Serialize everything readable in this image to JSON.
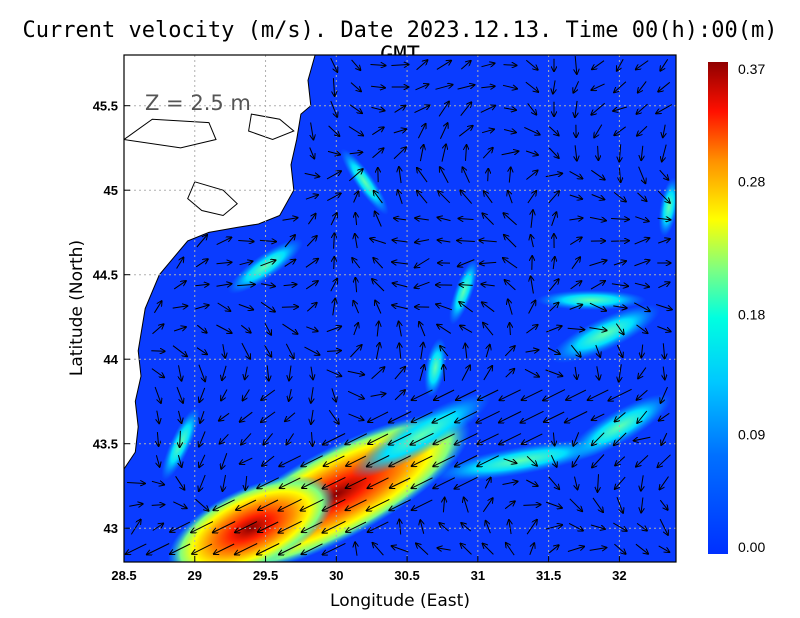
{
  "title": "Current velocity (m/s). Date 2023.12.13. Time 00(h):00(m) GMT",
  "depth_label": "Z = 2.5 m",
  "chart_data": {
    "type": "vector-field-map",
    "title": "Current velocity (m/s). Date 2023.12.13. Time 00(h):00(m) GMT",
    "xlabel": "Longitude (East)",
    "ylabel": "Latitude (North)",
    "xlim": [
      28.5,
      32.4
    ],
    "ylim": [
      42.8,
      45.8
    ],
    "x_ticks": [
      "28.5",
      "29",
      "29.5",
      "30",
      "30.5",
      "31",
      "31.5",
      "32"
    ],
    "y_ticks": [
      "43",
      "43.5",
      "44",
      "44.5",
      "45",
      "45.5"
    ],
    "x_tick_values": [
      28.5,
      29,
      29.5,
      30,
      30.5,
      31,
      31.5,
      32
    ],
    "y_tick_values": [
      43,
      43.5,
      44,
      44.5,
      45,
      45.5
    ],
    "grid": true,
    "colorbar": {
      "labels": [
        "0.37",
        "0.28",
        "0.18",
        "0.09",
        "0.00"
      ],
      "values": [
        0.37,
        0.28,
        0.18,
        0.09,
        0.0
      ],
      "min": 0.0,
      "max": 0.37,
      "colors": [
        "#0030ff",
        "#00a0ff",
        "#00ffff",
        "#80ff80",
        "#ffff00",
        "#ff8000",
        "#ff0000",
        "#800000"
      ]
    },
    "coastline": [
      [
        28.5,
        43.35
      ],
      [
        28.58,
        43.45
      ],
      [
        28.6,
        43.6
      ],
      [
        28.58,
        43.75
      ],
      [
        28.62,
        43.9
      ],
      [
        28.6,
        44.05
      ],
      [
        28.65,
        44.3
      ],
      [
        28.75,
        44.5
      ],
      [
        28.85,
        44.6
      ],
      [
        28.95,
        44.7
      ],
      [
        29.1,
        44.75
      ],
      [
        29.3,
        44.78
      ],
      [
        29.45,
        44.8
      ],
      [
        29.6,
        44.85
      ],
      [
        29.7,
        45.0
      ],
      [
        29.68,
        45.15
      ],
      [
        29.72,
        45.3
      ],
      [
        29.75,
        45.45
      ],
      [
        29.82,
        45.5
      ],
      [
        29.8,
        45.65
      ],
      [
        29.85,
        45.8
      ]
    ],
    "fast_current_band": {
      "description": "Strong southwest-flowing current along the western shelf",
      "max_speed": 0.37,
      "center": [
        30.0,
        43.25
      ]
    }
  }
}
